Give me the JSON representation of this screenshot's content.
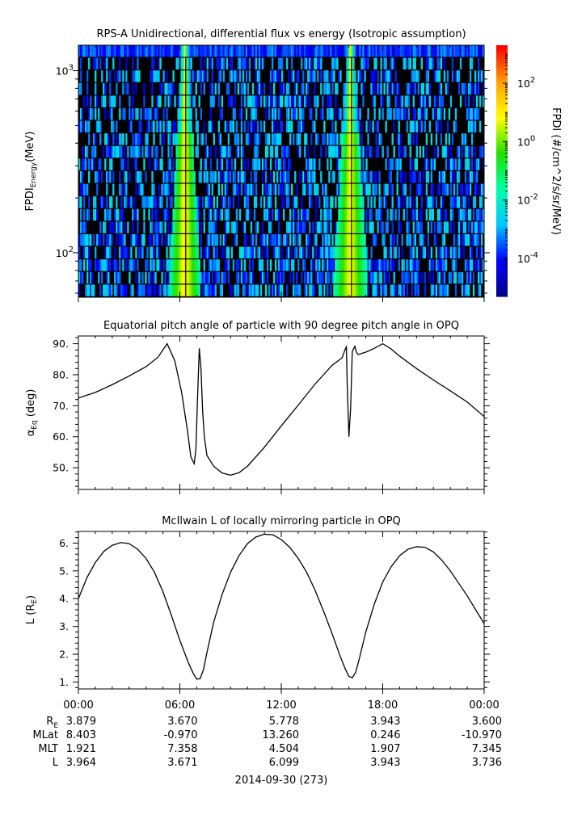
{
  "chart_data": [
    {
      "type": "heatmap",
      "title": "RPS-A Unidirectional, differential flux vs energy (Isotropic assumption)",
      "ylabel_main": "FPDI",
      "ylabel_sub": "Energy",
      "ylabel_unit": "(MeV)",
      "y_scale": "log",
      "ylim": [
        57,
        1380
      ],
      "y_ticks": [
        {
          "value": 100,
          "base": "10",
          "exp": "2"
        },
        {
          "value": 1000,
          "base": "10",
          "exp": "3"
        }
      ],
      "colorbar": {
        "label": "FPDI (#/cm^2/s/sr/MeV)",
        "scale": "log",
        "range": [
          -5.3,
          3.3
        ],
        "ticks": [
          {
            "value": 2,
            "base": "10",
            "exp": "2"
          },
          {
            "value": 0,
            "base": "10",
            "exp": "0"
          },
          {
            "value": -2,
            "base": "10",
            "exp": "-2"
          },
          {
            "value": -4,
            "base": "10",
            "exp": "-4"
          }
        ],
        "colors": [
          "#00008b",
          "#0000ff",
          "#00c8ff",
          "#00ffaa",
          "#22e000",
          "#ffff00",
          "#ffa000",
          "#ff0000"
        ]
      },
      "features": [
        {
          "center_hour": 6.3,
          "width_hours_at_top": 0.4,
          "width_hours_at_bottom": 1.9,
          "peak_log_flux": 1.2
        },
        {
          "center_hour": 16.1,
          "width_hours_at_top": 0.4,
          "width_hours_at_bottom": 2.1,
          "peak_log_flux": 1.0
        }
      ]
    },
    {
      "type": "line",
      "title": "Equatorial pitch angle of particle with 90 degree pitch angle in OPQ",
      "ylabel_main": "α",
      "ylabel_sub": "Eq",
      "ylabel_unit": "(deg)",
      "ylim": [
        43,
        92.5
      ],
      "y_ticks": [
        50,
        60,
        70,
        80,
        90
      ],
      "y_tick_labels": [
        "50.",
        "60.",
        "70.",
        "80.",
        "90."
      ],
      "series": [
        {
          "x": [
            0,
            1,
            2,
            3,
            4,
            4.7,
            5.25,
            5.7,
            6.1,
            6.45,
            6.65,
            6.85,
            6.95,
            7.05,
            7.15,
            7.25,
            7.35,
            7.45,
            7.6,
            8.0,
            8.5,
            9.0,
            9.5,
            10.0,
            11.0,
            12.0,
            13.0,
            14.0,
            15.0,
            15.6,
            15.8,
            15.85,
            15.9,
            16.0,
            16.1,
            16.2,
            16.35,
            16.45,
            16.55,
            17.0,
            17.5,
            18.0,
            18.5,
            19.0,
            20.0,
            21.0,
            22.0,
            23.0,
            24.0
          ],
          "y": [
            72.5,
            74.3,
            76.8,
            79.6,
            82.6,
            85.6,
            90.0,
            84.5,
            74.5,
            62.0,
            53.5,
            51.3,
            56.0,
            73.0,
            88.5,
            82.0,
            68.0,
            60.0,
            54.0,
            50.5,
            48.3,
            47.6,
            48.4,
            50.5,
            56.6,
            63.5,
            70.2,
            77.0,
            83.0,
            85.5,
            88.5,
            89.0,
            77.0,
            60.0,
            69.0,
            87.5,
            89.2,
            87.2,
            86.5,
            87.3,
            88.5,
            90.0,
            88.3,
            86.0,
            82.0,
            78.3,
            74.8,
            71.2,
            66.5
          ]
        }
      ]
    },
    {
      "type": "line",
      "title": "McIlwain L of locally mirroring particle in OPQ",
      "ylabel_main": "L (R",
      "ylabel_sub": "E",
      "ylabel_unit": ")",
      "ylim": [
        0.75,
        6.42
      ],
      "y_ticks": [
        1,
        2,
        3,
        4,
        5,
        6
      ],
      "y_tick_labels": [
        "1.",
        "2.",
        "3.",
        "4.",
        "5.",
        "6."
      ],
      "series": [
        {
          "x": [
            0,
            0.5,
            1.0,
            1.5,
            2.0,
            2.5,
            3.0,
            3.5,
            4.0,
            4.5,
            5.0,
            5.5,
            6.0,
            6.5,
            6.8,
            7.0,
            7.2,
            7.4,
            7.6,
            8.0,
            8.5,
            9.0,
            9.5,
            10.0,
            10.5,
            11.0,
            11.5,
            12.0,
            12.5,
            13.0,
            13.5,
            14.0,
            14.5,
            15.0,
            15.5,
            15.8,
            16.0,
            16.2,
            16.4,
            16.6,
            17.0,
            17.5,
            18.0,
            18.5,
            19.0,
            19.5,
            20.0,
            20.5,
            21.0,
            21.5,
            22.0,
            22.5,
            23.0,
            23.5,
            24.0
          ],
          "y": [
            4.0,
            4.75,
            5.3,
            5.7,
            5.92,
            6.02,
            5.98,
            5.78,
            5.45,
            4.95,
            4.25,
            3.4,
            2.5,
            1.7,
            1.3,
            1.1,
            1.12,
            1.45,
            2.05,
            3.15,
            4.15,
            4.95,
            5.55,
            5.98,
            6.22,
            6.32,
            6.3,
            6.13,
            5.85,
            5.45,
            4.95,
            4.3,
            3.55,
            2.75,
            1.9,
            1.45,
            1.2,
            1.15,
            1.35,
            1.8,
            2.8,
            3.8,
            4.6,
            5.15,
            5.55,
            5.78,
            5.87,
            5.85,
            5.68,
            5.38,
            5.0,
            4.55,
            4.1,
            3.6,
            3.1
          ]
        }
      ]
    }
  ],
  "x_axis": {
    "ticks": [
      0,
      6,
      12,
      18,
      24
    ],
    "tick_labels": [
      "00:00",
      "06:00",
      "12:00",
      "18:00",
      "00:00"
    ],
    "date_label": "2014-09-30 (273)"
  },
  "ephemeris": [
    {
      "label": "R",
      "label_sub": "E",
      "values": [
        "3.879",
        "3.670",
        "5.778",
        "3.943",
        "3.600"
      ]
    },
    {
      "label": "MLat",
      "label_sub": "",
      "values": [
        "8.403",
        "-0.970",
        "13.260",
        "0.246",
        "-10.970"
      ]
    },
    {
      "label": "MLT",
      "label_sub": "",
      "values": [
        "1.921",
        "7.358",
        "4.504",
        "1.907",
        "7.345"
      ]
    },
    {
      "label": "L",
      "label_sub": "",
      "values": [
        "3.964",
        "3.671",
        "6.099",
        "3.943",
        "3.736"
      ]
    }
  ]
}
